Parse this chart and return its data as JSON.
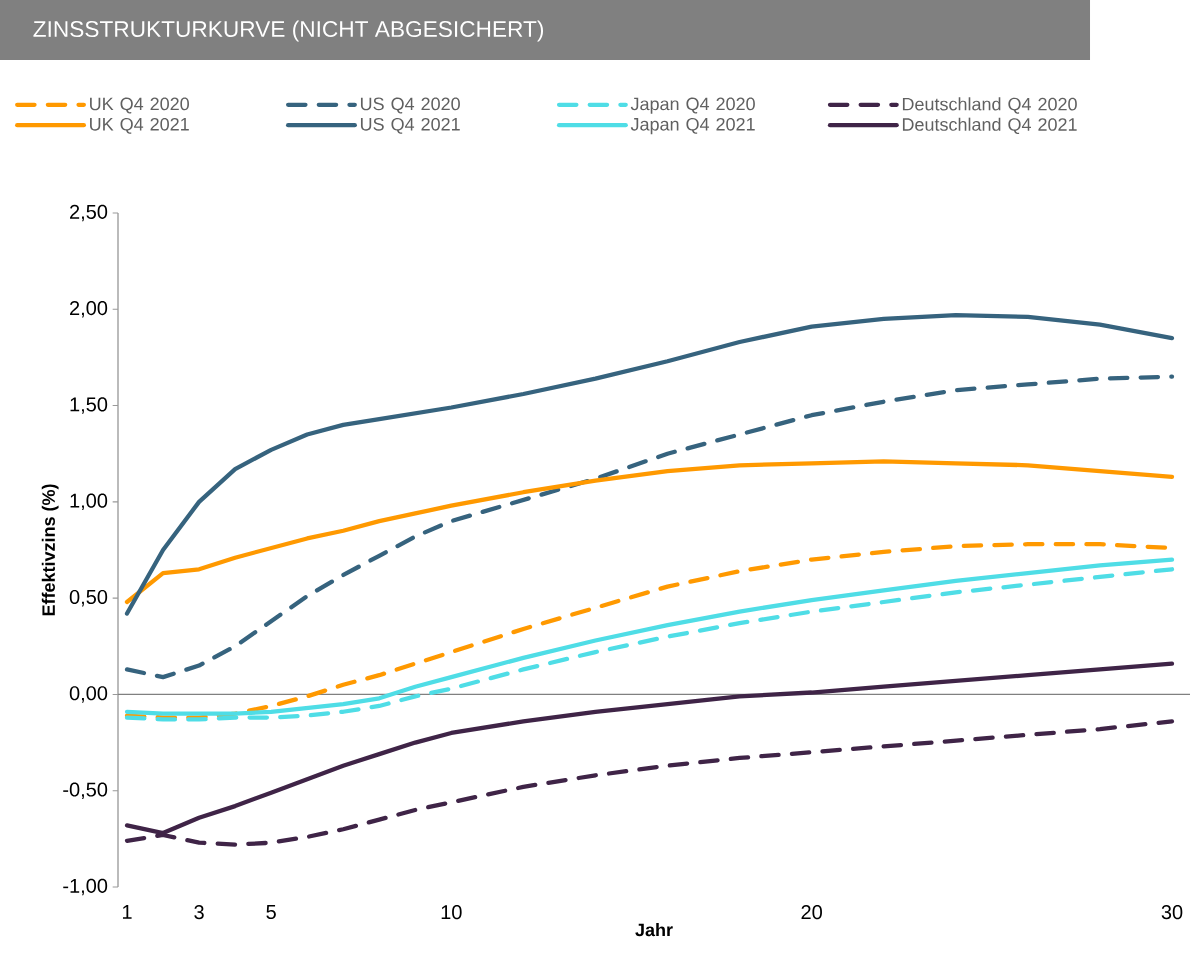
{
  "chart_data": {
    "type": "line",
    "title": "ZINSSTRUKTURKURVE (NICHT ABGESICHERT)",
    "xlabel": "Jahr",
    "ylabel": "Effektivzins (%)",
    "x": [
      1,
      2,
      3,
      4,
      5,
      6,
      7,
      8,
      9,
      10,
      12,
      14,
      16,
      18,
      20,
      22,
      24,
      26,
      28,
      30
    ],
    "series": [
      {
        "name": "UK Q4 2020",
        "color": "#ff9900",
        "line_style": "dashed",
        "values": [
          -0.11,
          -0.12,
          -0.12,
          -0.1,
          -0.06,
          -0.01,
          0.05,
          0.1,
          0.16,
          0.22,
          0.34,
          0.45,
          0.56,
          0.64,
          0.7,
          0.74,
          0.77,
          0.78,
          0.78,
          0.76
        ]
      },
      {
        "name": "US Q4 2020",
        "color": "#36637e",
        "line_style": "dashed",
        "values": [
          0.13,
          0.09,
          0.15,
          0.25,
          0.38,
          0.51,
          0.62,
          0.72,
          0.82,
          0.9,
          1.01,
          1.12,
          1.25,
          1.35,
          1.45,
          1.52,
          1.58,
          1.61,
          1.64,
          1.65
        ]
      },
      {
        "name": "Japan Q4 2020",
        "color": "#4fdde6",
        "line_style": "dashed",
        "values": [
          -0.12,
          -0.13,
          -0.13,
          -0.12,
          -0.12,
          -0.11,
          -0.09,
          -0.06,
          -0.01,
          0.03,
          0.13,
          0.22,
          0.3,
          0.37,
          0.43,
          0.48,
          0.53,
          0.57,
          0.61,
          0.65
        ]
      },
      {
        "name": "Deutschland Q4 2020",
        "color": "#3f2447",
        "line_style": "dashed",
        "values": [
          -0.76,
          -0.73,
          -0.77,
          -0.78,
          -0.77,
          -0.74,
          -0.7,
          -0.65,
          -0.6,
          -0.56,
          -0.48,
          -0.42,
          -0.37,
          -0.33,
          -0.3,
          -0.27,
          -0.24,
          -0.21,
          -0.18,
          -0.14
        ]
      },
      {
        "name": "UK Q4 2021",
        "color": "#ff9900",
        "line_style": "solid",
        "values": [
          0.48,
          0.63,
          0.65,
          0.71,
          0.76,
          0.81,
          0.85,
          0.9,
          0.94,
          0.98,
          1.05,
          1.11,
          1.16,
          1.19,
          1.2,
          1.21,
          1.2,
          1.19,
          1.16,
          1.13
        ]
      },
      {
        "name": "US Q4 2021",
        "color": "#36637e",
        "line_style": "solid",
        "values": [
          0.42,
          0.75,
          1.0,
          1.17,
          1.27,
          1.35,
          1.4,
          1.43,
          1.46,
          1.49,
          1.56,
          1.64,
          1.73,
          1.83,
          1.91,
          1.95,
          1.97,
          1.96,
          1.92,
          1.85
        ]
      },
      {
        "name": "Japan Q4 2021",
        "color": "#4fdde6",
        "line_style": "solid",
        "values": [
          -0.09,
          -0.1,
          -0.1,
          -0.1,
          -0.09,
          -0.07,
          -0.05,
          -0.02,
          0.04,
          0.09,
          0.19,
          0.28,
          0.36,
          0.43,
          0.49,
          0.54,
          0.59,
          0.63,
          0.67,
          0.7
        ]
      },
      {
        "name": "Deutschland Q4 2021",
        "color": "#3f2447",
        "line_style": "solid",
        "values": [
          -0.68,
          -0.72,
          -0.64,
          -0.58,
          -0.51,
          -0.44,
          -0.37,
          -0.31,
          -0.25,
          -0.2,
          -0.14,
          -0.09,
          -0.05,
          -0.01,
          0.01,
          0.04,
          0.07,
          0.1,
          0.13,
          0.16
        ]
      }
    ],
    "xlim": [
      0.75,
      30.5
    ],
    "xticks": [
      1,
      3,
      5,
      10,
      20,
      30
    ],
    "ylim": [
      -1.0,
      2.5
    ],
    "yticks": [
      {
        "value": -1.0,
        "label": "-1,00"
      },
      {
        "value": -0.5,
        "label": "-0,50"
      },
      {
        "value": 0,
        "label": "0,00"
      },
      {
        "value": 0.5,
        "label": "0,50"
      },
      {
        "value": 1.0,
        "label": "1,00"
      },
      {
        "value": 1.5,
        "label": "1,50"
      },
      {
        "value": 2.0,
        "label": "2,00"
      },
      {
        "value": 2.5,
        "label": "2,50"
      }
    ],
    "ref_lines": [
      {
        "axis": "y",
        "value": 0,
        "color": "#808080"
      }
    ],
    "legend": "top",
    "marker": "none",
    "grid": false
  }
}
